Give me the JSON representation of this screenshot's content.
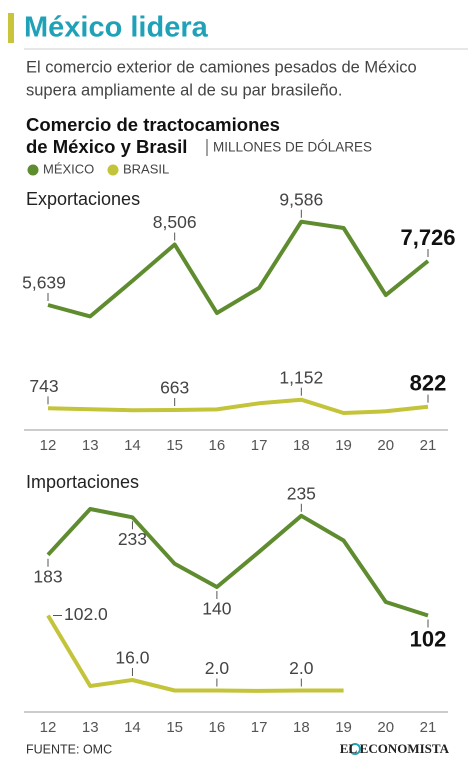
{
  "header": {
    "title": "México lidera",
    "subtitle": [
      "El comercio exterior de camiones pesados de México",
      "supera ampliamente al de su par brasileño."
    ],
    "chart_title": [
      "Comercio de tractocamiones",
      "de México y Brasil"
    ],
    "units": "MILLONES DE DÓLARES"
  },
  "chart_data": [
    {
      "type": "line",
      "title": "Exportaciones",
      "categories": [
        "12",
        "13",
        "14",
        "15",
        "16",
        "17",
        "18",
        "19",
        "20",
        "21"
      ],
      "ylim": [
        0,
        10000
      ],
      "series": [
        {
          "name": "MÉXICO",
          "color": "#5e8c2f",
          "values": [
            5639,
            5100,
            6780,
            8506,
            5260,
            6450,
            9586,
            9290,
            6110,
            7726
          ],
          "value_labels": [
            "5,639",
            null,
            null,
            "8,506",
            null,
            null,
            "9,586",
            null,
            null,
            "7,726"
          ]
        },
        {
          "name": "BRASIL",
          "color": "#c4c43a",
          "values": [
            743,
            700,
            650,
            663,
            690,
            980,
            1152,
            520,
            600,
            822
          ],
          "value_labels": [
            "743",
            null,
            null,
            "663",
            null,
            null,
            "1,152",
            null,
            null,
            "822"
          ]
        }
      ]
    },
    {
      "type": "line",
      "title": "Importaciones",
      "categories": [
        "12",
        "13",
        "14",
        "15",
        "16",
        "17",
        "18",
        "19",
        "20",
        "21"
      ],
      "ylim": [
        0,
        250
      ],
      "series": [
        {
          "name": "MÉXICO",
          "color": "#5e8c2f",
          "values": [
            183,
            244,
            233,
            171,
            140,
            187,
            235,
            202,
            120,
            102
          ],
          "value_labels": [
            "183",
            null,
            "233",
            null,
            "140",
            null,
            "235",
            null,
            null,
            "102"
          ]
        },
        {
          "name": "BRASIL",
          "color": "#c4c43a",
          "values": [
            102,
            8,
            16,
            2,
            2,
            1.5,
            2,
            2,
            null,
            null
          ],
          "value_labels": [
            "102.0",
            null,
            "16.0",
            null,
            "2.0",
            null,
            "2.0",
            null,
            null,
            null
          ]
        }
      ]
    }
  ],
  "footer": {
    "source": "FUENTE: OMC",
    "brand": "EL ECONOMISTA"
  }
}
